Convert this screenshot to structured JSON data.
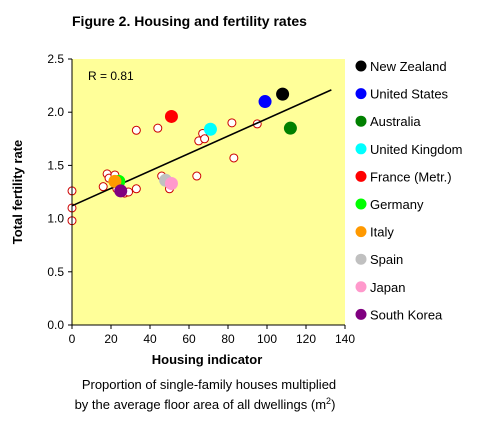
{
  "chart_data": {
    "type": "scatter",
    "title": "Figure 2. Housing and fertility rates",
    "xlabel": "Housing indicator",
    "ylabel": "Total fertility rate",
    "subtitle_line1": "Proportion of single-family houses multiplied",
    "subtitle_line2": "by the average floor area of all dwellings (m",
    "subtitle_sup": "2",
    "subtitle_close": ")",
    "annotation": "R = 0.81",
    "xlim": [
      0,
      140
    ],
    "ylim": [
      0.0,
      2.5
    ],
    "x_ticks": [
      "0",
      "20",
      "40",
      "60",
      "80",
      "100",
      "120",
      "140"
    ],
    "y_ticks": [
      "0.0",
      "0.5",
      "1.0",
      "1.5",
      "2.0",
      "2.5"
    ],
    "background": "#FFFF99",
    "grid": false,
    "legend_position": "right",
    "trendline": {
      "x": [
        0,
        133
      ],
      "y": [
        1.12,
        2.21
      ]
    },
    "other_countries": {
      "color": "#CC0000",
      "fill": "#FFFFFF",
      "points": [
        [
          0,
          1.26
        ],
        [
          0,
          1.1
        ],
        [
          0,
          0.98
        ],
        [
          16,
          1.3
        ],
        [
          18,
          1.42
        ],
        [
          19,
          1.38
        ],
        [
          22,
          1.41
        ],
        [
          23,
          1.28
        ],
        [
          27,
          1.24
        ],
        [
          29,
          1.25
        ],
        [
          33,
          1.28
        ],
        [
          33,
          1.83
        ],
        [
          44,
          1.85
        ],
        [
          46,
          1.4
        ],
        [
          50,
          1.28
        ],
        [
          64,
          1.4
        ],
        [
          65,
          1.73
        ],
        [
          67,
          1.8
        ],
        [
          68,
          1.75
        ],
        [
          82,
          1.9
        ],
        [
          83,
          1.57
        ],
        [
          95,
          1.89
        ]
      ]
    },
    "series": [
      {
        "name": "New Zealand",
        "color": "#000000",
        "x": 108,
        "y": 2.17
      },
      {
        "name": "United States",
        "color": "#0000FF",
        "x": 99,
        "y": 2.1
      },
      {
        "name": "Australia",
        "color": "#008000",
        "x": 112,
        "y": 1.85
      },
      {
        "name": "United Kingdom",
        "color": "#00FFFF",
        "x": 71,
        "y": 1.84
      },
      {
        "name": "France (Metr.)",
        "color": "#FF0000",
        "x": 51,
        "y": 1.96
      },
      {
        "name": "Germany",
        "color": "#00FF00",
        "x": 24,
        "y": 1.35
      },
      {
        "name": "Italy",
        "color": "#FF9900",
        "x": 22,
        "y": 1.35
      },
      {
        "name": "Spain",
        "color": "#C0C0C0",
        "x": 48,
        "y": 1.36
      },
      {
        "name": "Japan",
        "color": "#FF99CC",
        "x": 51,
        "y": 1.33
      },
      {
        "name": "South Korea",
        "color": "#800080",
        "x": 25,
        "y": 1.26
      }
    ]
  }
}
